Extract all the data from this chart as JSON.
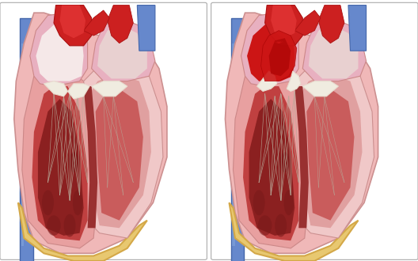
{
  "background_color": "#ffffff",
  "colors": {
    "heart_pink_outer": "#f0b8b8",
    "heart_pink_mid": "#e8a0a0",
    "lv_muscle": "#c04040",
    "lv_dark": "#8b2020",
    "rv_light": "#f0c8c8",
    "rv_mid": "#e0a0a0",
    "atrium_pink": "#e8b0c0",
    "atrium_cavity_l": "#f5e8e8",
    "atrium_cavity_r_normal": "#e8d0d0",
    "la_wall": "#d8a0b0",
    "aorta_red": "#cc2020",
    "aorta_dark": "#aa1010",
    "aorta_inner": "#dd3030",
    "blue_vessel": "#6688cc",
    "blue_vessel_dark": "#4466aa",
    "blue_vessel_light": "#88aadd",
    "valve_white": "#f0ece0",
    "valve_cream": "#e8ddd0",
    "chordae": "#c8b8a8",
    "pericardium_gold": "#d4a848",
    "pericardium_tan": "#e8c870",
    "septum_dark": "#993030",
    "muscle_dark": "#7a1a1a",
    "regurg_red": "#cc1515",
    "regurg_dark": "#aa0505",
    "panel_border": "#aaaaaa"
  }
}
